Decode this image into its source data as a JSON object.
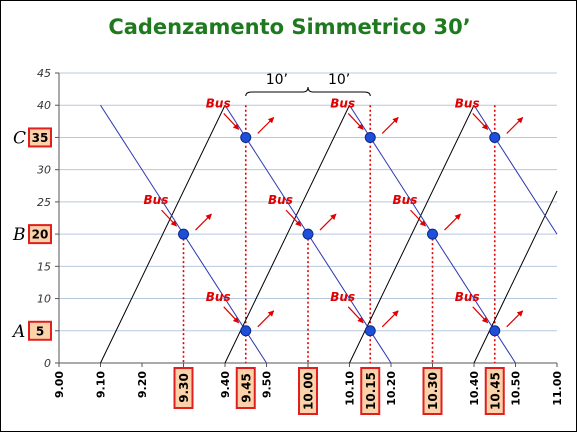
{
  "title": "Cadenzamento Simmetrico 30’",
  "bus_label": "Bus",
  "interval_labels": [
    "10’",
    "10’"
  ],
  "colors": {
    "title": "#1f7a1f",
    "dir_a_to_c": "#000000",
    "dir_c_to_a": "#2a35b0",
    "node": "#1f4fd8",
    "dotted": "#e00000",
    "grid": "#b8c8dd",
    "box_fill": "#fcd3a8",
    "box_border": "#e02020"
  },
  "chart_data": {
    "type": "line",
    "title": "Cadenzamento Simmetrico 30’",
    "x_ticks": [
      "9.00",
      "9.10",
      "9.20",
      "9.30",
      "9.40",
      "9.50",
      "10.00",
      "10.10",
      "10.20",
      "10.30",
      "10.40",
      "10.50",
      "11.00"
    ],
    "x_highlight": [
      "9.30",
      "9.45",
      "10.00",
      "10.15",
      "10.30",
      "10.45"
    ],
    "xlim": [
      0,
      60
    ],
    "ylim": [
      0,
      45
    ],
    "y_ticks": [
      0,
      5,
      10,
      15,
      20,
      25,
      30,
      35,
      40,
      45
    ],
    "grid": true,
    "stops": [
      {
        "letter": "A",
        "value": "5",
        "y": 5
      },
      {
        "letter": "B",
        "value": "20",
        "y": 20
      },
      {
        "letter": "C",
        "value": "35",
        "y": 35
      }
    ],
    "series": [
      {
        "direction": "up",
        "points": [
          [
            5,
            0
          ],
          [
            20,
            40
          ]
        ]
      },
      {
        "direction": "up",
        "points": [
          [
            20,
            0
          ],
          [
            35,
            40
          ]
        ]
      },
      {
        "direction": "up",
        "points": [
          [
            35,
            0
          ],
          [
            50,
            40
          ]
        ]
      },
      {
        "direction": "up",
        "points": [
          [
            50,
            0
          ],
          [
            60,
            26.7
          ]
        ]
      },
      {
        "direction": "down",
        "points": [
          [
            5,
            40
          ],
          [
            25,
            0
          ]
        ]
      },
      {
        "direction": "down",
        "points": [
          [
            20,
            40
          ],
          [
            40,
            0
          ]
        ]
      },
      {
        "direction": "down",
        "points": [
          [
            35,
            40
          ],
          [
            55,
            0
          ]
        ]
      },
      {
        "direction": "down",
        "points": [
          [
            50,
            40
          ],
          [
            60,
            20
          ]
        ]
      }
    ],
    "crossings": [
      {
        "x": 15,
        "y": 20
      },
      {
        "x": 30,
        "y": 20
      },
      {
        "x": 45,
        "y": 20
      },
      {
        "x": 22.5,
        "y": 5
      },
      {
        "x": 37.5,
        "y": 5
      },
      {
        "x": 52.5,
        "y": 5
      },
      {
        "x": 22.5,
        "y": 35
      },
      {
        "x": 37.5,
        "y": 35
      },
      {
        "x": 52.5,
        "y": 35
      }
    ],
    "dotted_verticals": [
      15,
      22.5,
      30,
      37.5,
      45,
      52.5
    ]
  }
}
